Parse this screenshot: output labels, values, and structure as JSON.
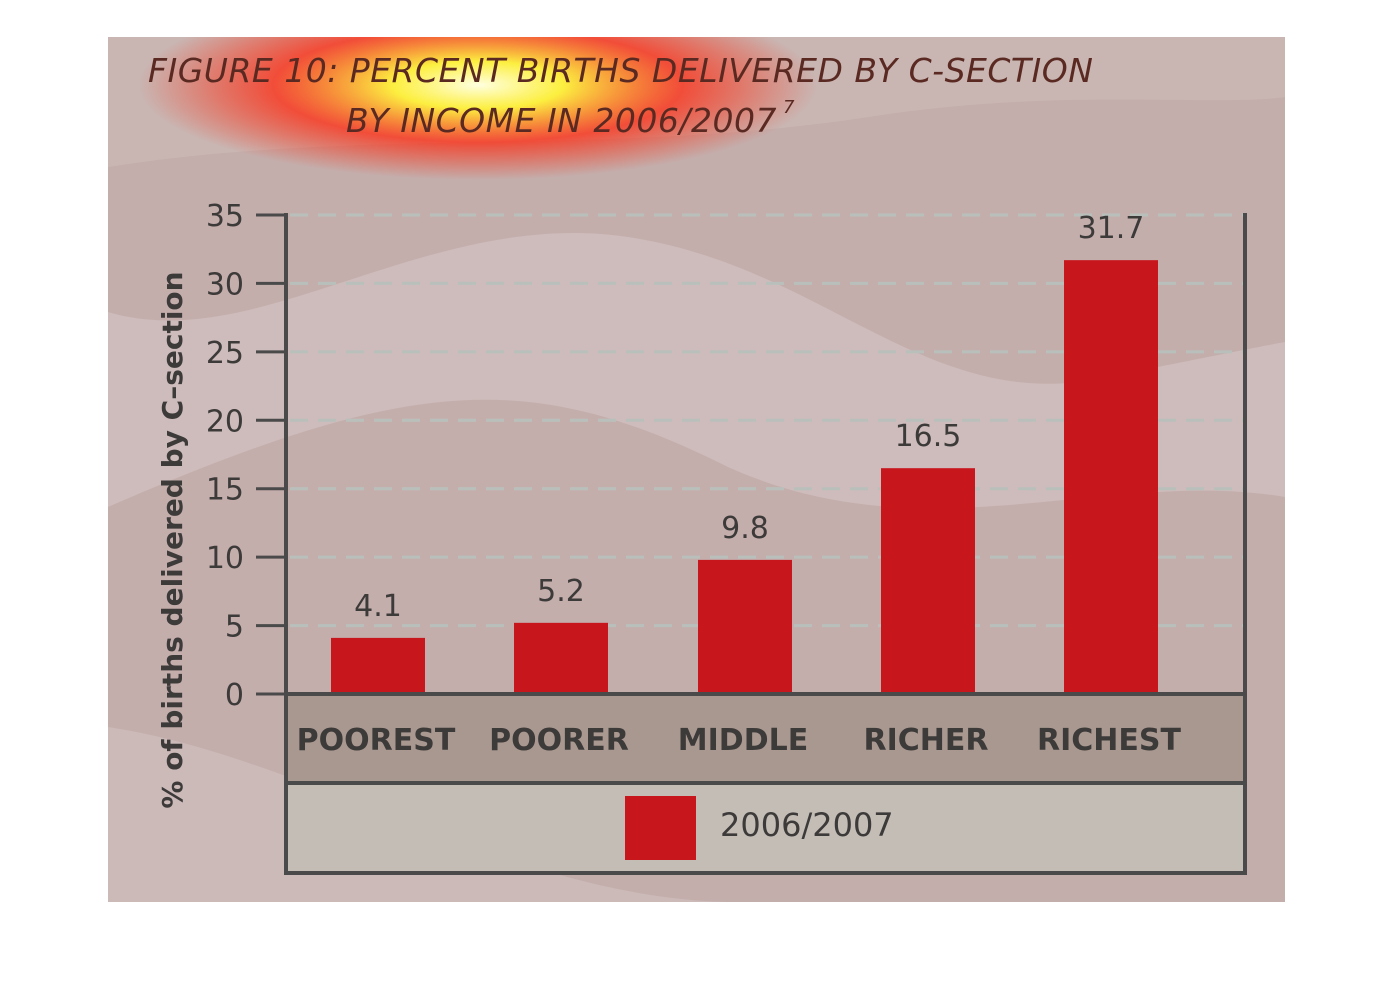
{
  "title": {
    "line1": "FIGURE 10: PERCENT BIRTHS DELIVERED BY C-SECTION",
    "line2": "BY INCOME IN 2006/2007",
    "footnote": "7"
  },
  "colors": {
    "bar": "#c8161d",
    "background": "#c4aeac",
    "category_band": "#a99890",
    "legend_band": "#c4bdb6",
    "frame": "#4a4a4a",
    "grid": "#b9c0bc",
    "title": "#5a2a22"
  },
  "chart_data": {
    "type": "bar",
    "title": "FIGURE 10: PERCENT BIRTHS DELIVERED BY C-SECTION BY INCOME IN 2006/2007",
    "categories": [
      "POOREST",
      "POORER",
      "MIDDLE",
      "RICHER",
      "RICHEST"
    ],
    "series": [
      {
        "name": "2006/2007",
        "values": [
          4.1,
          5.2,
          9.8,
          16.5,
          31.7
        ]
      }
    ],
    "data_labels": [
      "4.1",
      "5.2",
      "9.8",
      "16.5",
      "31.7"
    ],
    "xlabel": "",
    "ylabel": "% of births delivered by C–section",
    "ylim": [
      0,
      35
    ],
    "yticks": [
      0,
      5,
      10,
      15,
      20,
      25,
      30,
      35
    ],
    "grid": true,
    "legend_position": "bottom"
  }
}
